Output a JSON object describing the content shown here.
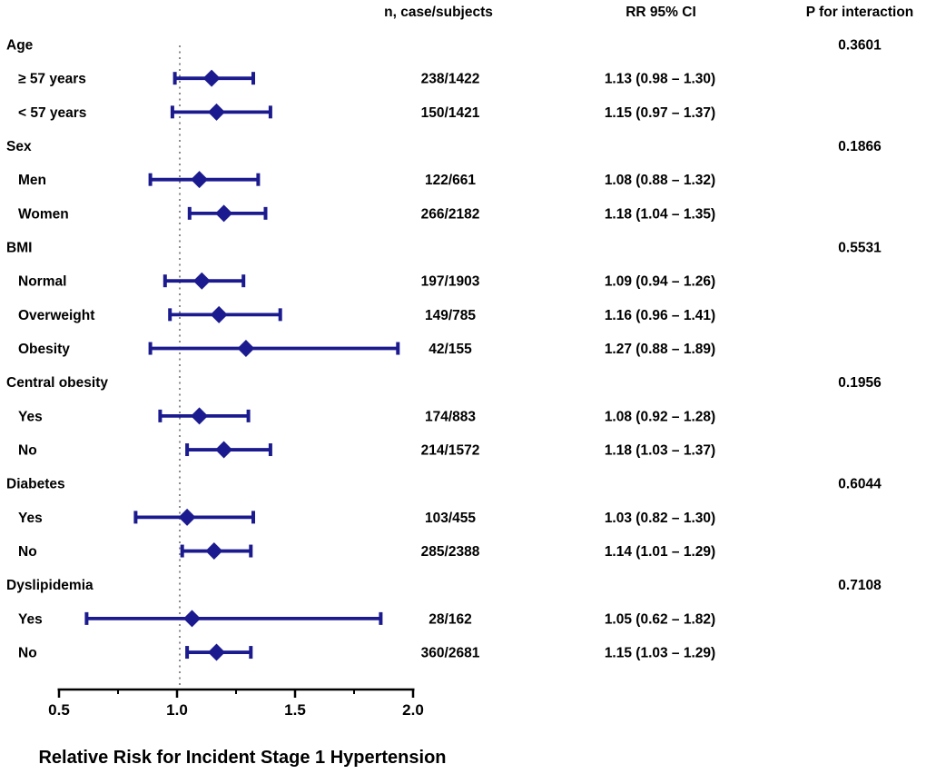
{
  "chart_data": {
    "type": "forest",
    "xlabel": "Relative Risk for Incident Stage 1 Hypertension",
    "x_range": [
      0.5,
      2.0
    ],
    "x_ticks": [
      "0.5",
      "1.0",
      "1.5",
      "2.0"
    ],
    "x_tick_values": [
      0.5,
      1.0,
      1.5,
      2.0
    ],
    "x_minor_tick_values": [
      0.75,
      1.25,
      1.75
    ],
    "reference_line": 1.0,
    "grid": "off",
    "columns": {
      "n": "n, case/subjects",
      "rr": "RR 95% CI",
      "p": "P for interaction"
    },
    "groups": [
      {
        "label": "Age",
        "p_interaction": "0.3601",
        "rows": [
          {
            "label": "≥ 57 years",
            "n": "238/1422",
            "rr": 1.13,
            "lo": 0.98,
            "hi": 1.3,
            "rr_text": "1.13 (0.98 – 1.30)"
          },
          {
            "label": "< 57 years",
            "n": "150/1421",
            "rr": 1.15,
            "lo": 0.97,
            "hi": 1.37,
            "rr_text": "1.15 (0.97 – 1.37)"
          }
        ]
      },
      {
        "label": "Sex",
        "p_interaction": "0.1866",
        "rows": [
          {
            "label": "Men",
            "n": "122/661",
            "rr": 1.08,
            "lo": 0.88,
            "hi": 1.32,
            "rr_text": "1.08 (0.88 – 1.32)"
          },
          {
            "label": "Women",
            "n": "266/2182",
            "rr": 1.18,
            "lo": 1.04,
            "hi": 1.35,
            "rr_text": "1.18 (1.04 – 1.35)"
          }
        ]
      },
      {
        "label": "BMI",
        "p_interaction": "0.5531",
        "rows": [
          {
            "label": "Normal",
            "n": "197/1903",
            "rr": 1.09,
            "lo": 0.94,
            "hi": 1.26,
            "rr_text": "1.09 (0.94 – 1.26)"
          },
          {
            "label": "Overweight",
            "n": "149/785",
            "rr": 1.16,
            "lo": 0.96,
            "hi": 1.41,
            "rr_text": "1.16 (0.96 – 1.41)"
          },
          {
            "label": "Obesity",
            "n": "42/155",
            "rr": 1.27,
            "lo": 0.88,
            "hi": 1.89,
            "rr_text": "1.27 (0.88 – 1.89)"
          }
        ]
      },
      {
        "label": "Central obesity",
        "p_interaction": "0.1956",
        "rows": [
          {
            "label": "Yes",
            "n": "174/883",
            "rr": 1.08,
            "lo": 0.92,
            "hi": 1.28,
            "rr_text": "1.08 (0.92 – 1.28)"
          },
          {
            "label": "No",
            "n": "214/1572",
            "rr": 1.18,
            "lo": 1.03,
            "hi": 1.37,
            "rr_text": "1.18 (1.03 – 1.37)"
          }
        ]
      },
      {
        "label": "Diabetes",
        "p_interaction": "0.6044",
        "rows": [
          {
            "label": "Yes",
            "n": "103/455",
            "rr": 1.03,
            "lo": 0.82,
            "hi": 1.3,
            "rr_text": "1.03 (0.82 – 1.30)"
          },
          {
            "label": "No",
            "n": "285/2388",
            "rr": 1.14,
            "lo": 1.01,
            "hi": 1.29,
            "rr_text": "1.14 (1.01 – 1.29)"
          }
        ]
      },
      {
        "label": "Dyslipidemia",
        "p_interaction": "0.7108",
        "rows": [
          {
            "label": "Yes",
            "n": "28/162",
            "rr": 1.05,
            "lo": 0.62,
            "hi": 1.82,
            "rr_text": "1.05 (0.62 – 1.82)"
          },
          {
            "label": "No",
            "n": "360/2681",
            "rr": 1.15,
            "lo": 1.03,
            "hi": 1.29,
            "rr_text": "1.15 (1.03 – 1.29)"
          }
        ]
      }
    ],
    "colors": {
      "marker": "#1b1b8f",
      "axis": "#000000",
      "text": "#000000",
      "reference_line": "#8a8a8a"
    }
  }
}
